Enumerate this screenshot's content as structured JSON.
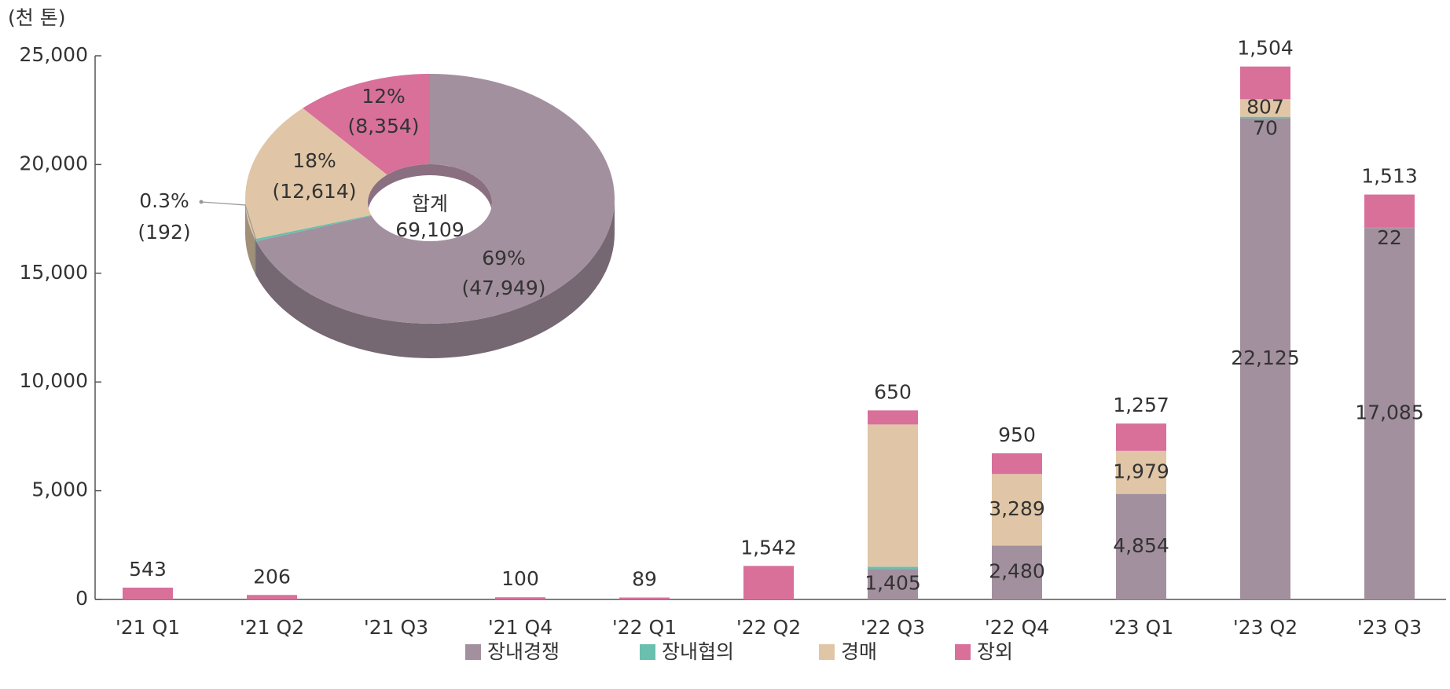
{
  "chart_data": [
    {
      "type": "bar",
      "stacked": true,
      "unit_label": "(천 톤)",
      "categories": [
        "'21 Q1",
        "'21 Q2",
        "'21 Q3",
        "'21 Q4",
        "'22 Q1",
        "'22 Q2",
        "'22 Q3",
        "'22 Q4",
        "'23 Q1",
        "'23 Q2",
        "'23 Q3"
      ],
      "series": [
        {
          "name": "장내경쟁",
          "color": "#a3909f",
          "values": [
            null,
            null,
            null,
            null,
            null,
            null,
            1405,
            2480,
            4854,
            22125,
            17085
          ],
          "value_labels": [
            null,
            null,
            null,
            null,
            null,
            null,
            "1,405",
            "2,480",
            "4,854",
            "22,125",
            "17,085"
          ]
        },
        {
          "name": "장내협의",
          "color": "#6bbfae",
          "values": [
            null,
            null,
            null,
            null,
            null,
            null,
            100,
            null,
            null,
            70,
            22
          ],
          "value_labels": [
            null,
            null,
            null,
            null,
            null,
            null,
            null,
            null,
            null,
            "70",
            "22"
          ]
        },
        {
          "name": "경매",
          "color": "#e0c6a6",
          "values": [
            null,
            null,
            null,
            null,
            null,
            null,
            6539,
            3289,
            1979,
            807,
            null
          ],
          "value_labels": [
            null,
            null,
            null,
            null,
            null,
            null,
            null,
            "3,289",
            "1,979",
            "807",
            null
          ]
        },
        {
          "name": "장외",
          "color": "#d8709a",
          "values": [
            543,
            206,
            null,
            100,
            89,
            1542,
            650,
            950,
            1257,
            1504,
            1513
          ],
          "value_labels": [
            "543",
            "206",
            null,
            "100",
            "89",
            "1,542",
            "650",
            "950",
            "1,257",
            "1,504",
            "1,513"
          ]
        }
      ],
      "ylim": [
        0,
        25000
      ],
      "yticks": [
        0,
        {
          "value": 5000,
          "label": "5,000"
        },
        {
          "value": 10000,
          "label": "10,000"
        },
        {
          "value": 15000,
          "label": "15,000"
        },
        {
          "value": 20000,
          "label": "20,000"
        },
        {
          "value": 25000,
          "label": "25,000"
        }
      ],
      "grid": false,
      "legend": "bottom"
    },
    {
      "type": "pie",
      "donut": true,
      "categories": [
        "장내경쟁",
        "장내협의",
        "경매",
        "장외"
      ],
      "colors": [
        "#a3909f",
        "#6bbfae",
        "#e0c6a6",
        "#d8709a"
      ],
      "values": [
        69,
        0.3,
        18,
        12
      ],
      "value_labels": [
        "69%",
        "0.3%",
        "18%",
        "12%"
      ],
      "amounts": [
        47949,
        192,
        12614,
        8354
      ],
      "amount_labels": [
        "(47,949)",
        "(192)",
        "(12,614)",
        "(8,354)"
      ],
      "total_label": "합계",
      "total": 69109,
      "total_value_label": "69,109"
    }
  ]
}
